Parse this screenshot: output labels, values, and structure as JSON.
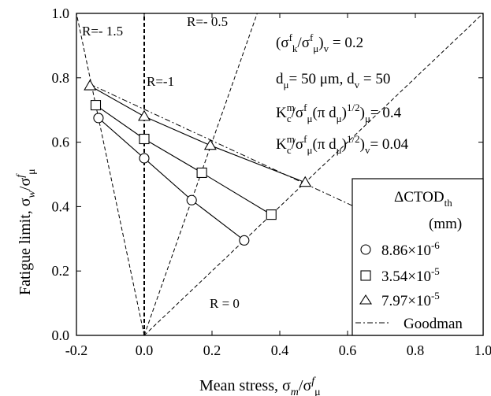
{
  "chart_data": {
    "type": "line",
    "xlabel": {
      "main": "Mean stress,  σ",
      "sub1": "m",
      "mid": "/σ",
      "sup": "f",
      "sub2": "μ"
    },
    "ylabel": {
      "main": "Fatigue limit,  σ",
      "sub1": "w",
      "mid": "/σ",
      "sup": "f",
      "sub2": "μ"
    },
    "xlim": [
      -0.2,
      1.0
    ],
    "ylim": [
      0.0,
      1.0
    ],
    "xticks": [
      "-0.2",
      "0.0",
      "0.2",
      "0.4",
      "0.6",
      "0.8",
      "1.0"
    ],
    "yticks": [
      "0.0",
      "0.2",
      "0.4",
      "0.6",
      "0.8",
      "1.0"
    ],
    "series": [
      {
        "name": "8.86×10⁻⁶",
        "marker": "circle",
        "x": [
          -0.135,
          0.0,
          0.14,
          0.295
        ],
        "y": [
          0.675,
          0.55,
          0.42,
          0.295
        ]
      },
      {
        "name": "3.54×10⁻⁵",
        "marker": "square",
        "x": [
          -0.143,
          0.0,
          0.17,
          0.375
        ],
        "y": [
          0.715,
          0.61,
          0.505,
          0.375
        ]
      },
      {
        "name": "7.97×10⁻⁵",
        "marker": "triangle",
        "x": [
          -0.16,
          0.0,
          0.195,
          0.475
        ],
        "y": [
          0.775,
          0.68,
          0.59,
          0.475
        ]
      },
      {
        "name": "Goodman",
        "marker": "none",
        "x": [
          -0.16,
          0.62
        ],
        "y": [
          0.78,
          0.4
        ]
      }
    ],
    "r_lines": [
      {
        "label": "R=- 1.5",
        "slope": -5
      },
      {
        "label": "R=- 0.5",
        "slope": 3
      },
      {
        "label": "R=-1",
        "slope": null
      },
      {
        "label": "R = 0",
        "slope": 1
      }
    ],
    "annotations": [
      {
        "pre": "(σ",
        "sup1": "f",
        "sub1": "k",
        "mid": "/σ",
        "sup2": "f",
        "sub2": "μ",
        "post": ")",
        "sub3": "v",
        "tail": " = 0.2"
      },
      {
        "text": "d_μ= 50 μm, d_v = 50"
      },
      {
        "text": "K^m_c/σ^f_μ(π d_μ)^1/2)_μ= 0.4"
      },
      {
        "text": "K^m_c/σ^f_μ(π d_μ)^1/2)_v= 0.04"
      }
    ],
    "legend": {
      "title": "ΔCTOD",
      "title_sub": "th",
      "unit": "(mm)",
      "entries": [
        {
          "mantissa": "8.86",
          "exp": "-6",
          "marker": "circle"
        },
        {
          "mantissa": "3.54",
          "exp": "-5",
          "marker": "square"
        },
        {
          "mantissa": "7.97",
          "exp": "-5",
          "marker": "triangle"
        },
        {
          "label": "Goodman",
          "marker": "dashdot"
        }
      ],
      "placement": "lower-right"
    }
  },
  "text": {
    "r_m15": "R=- 1.5",
    "r_m05": "R=- 0.5",
    "r_m1": "R=-1",
    "r_0": "R = 0",
    "ann2": "d",
    "ann2_sub1": "μ",
    "ann2_mid": "= 50 μm, d",
    "ann2_sub2": "v",
    "ann2_tail": " = 50",
    "ann3_K": "K",
    "ann3_supm": "m",
    "ann3_subc": "c",
    "ann3_mid": "/σ",
    "ann3_supf": "f",
    "ann3_subu": "μ",
    "ann3_paren": "(π d",
    "ann3_subu2": "μ",
    "ann3_close": ")",
    "ann3_half": "1/2",
    "ann3_close2": ")",
    "ann3_subu3": "μ",
    "ann3_tail": "= 0.4",
    "ann4_subv": "v",
    "ann4_tail": "= 0.04",
    "times": "×10"
  }
}
